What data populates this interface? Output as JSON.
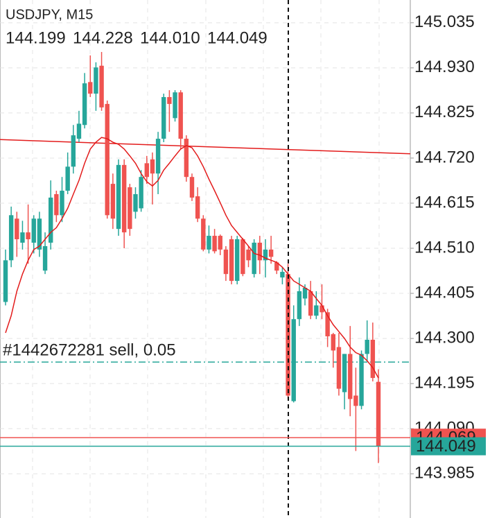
{
  "chart_data": {
    "type": "candlestick",
    "title": "USDJPY, M15",
    "ohlc_labels": [
      "144.199",
      "144.228",
      "144.010",
      "144.049"
    ],
    "up_color": "#26a69a",
    "down_color": "#ef5350",
    "open": [
      144.385,
      144.482,
      144.579,
      144.523,
      144.547,
      144.523,
      144.507,
      144.458,
      144.523,
      144.636,
      144.587,
      144.644,
      144.7,
      144.765,
      144.797,
      144.897,
      144.87,
      144.935,
      144.846,
      144.66,
      144.555,
      144.704,
      144.652,
      144.595,
      144.603,
      144.708,
      144.717,
      144.684,
      144.765,
      144.862,
      144.813,
      144.873,
      144.765,
      144.676,
      144.631,
      144.579,
      144.507,
      144.539,
      144.539,
      144.507,
      144.531,
      144.434,
      144.531,
      144.507,
      144.45,
      144.523,
      144.482,
      144.507,
      144.477,
      144.442,
      144.45,
      144.154,
      144.345,
      144.393,
      144.41,
      144.353,
      144.377,
      144.361,
      144.31,
      144.28,
      144.175,
      144.264,
      144.167,
      144.143,
      144.264,
      144.297,
      144.199
    ],
    "high": [
      144.507,
      144.607,
      144.595,
      144.574,
      144.612,
      144.587,
      144.595,
      144.547,
      144.668,
      144.644,
      144.676,
      144.733,
      144.797,
      144.83,
      144.918,
      144.959,
      144.943,
      144.967,
      144.854,
      144.684,
      144.717,
      144.717,
      144.66,
      144.652,
      144.692,
      144.725,
      144.733,
      144.781,
      144.87,
      144.878,
      144.878,
      144.878,
      144.773,
      144.684,
      144.652,
      144.587,
      144.563,
      144.555,
      144.542,
      144.515,
      144.539,
      144.539,
      144.534,
      144.515,
      144.531,
      144.539,
      144.531,
      144.539,
      144.48,
      144.466,
      144.474,
      144.377,
      144.442,
      144.426,
      144.434,
      144.41,
      144.426,
      144.369,
      144.313,
      144.313,
      144.264,
      144.329,
      144.232,
      144.272,
      144.342,
      144.337,
      144.228
    ],
    "low": [
      144.377,
      144.466,
      144.49,
      144.507,
      144.474,
      144.498,
      144.49,
      144.45,
      144.507,
      144.571,
      144.571,
      144.636,
      144.684,
      144.757,
      144.789,
      144.862,
      144.83,
      144.83,
      144.579,
      144.555,
      144.539,
      144.51,
      144.539,
      144.579,
      144.595,
      144.66,
      144.612,
      144.636,
      144.757,
      144.781,
      144.805,
      144.741,
      144.665,
      144.62,
      144.571,
      144.503,
      144.498,
      144.498,
      144.494,
      144.434,
      144.426,
      144.426,
      144.445,
      144.466,
      144.442,
      144.45,
      144.442,
      144.474,
      144.45,
      144.426,
      144.159,
      144.151,
      144.329,
      144.377,
      144.345,
      144.345,
      144.345,
      144.28,
      144.232,
      144.167,
      144.135,
      144.119,
      144.038,
      144.135,
      144.248,
      144.2,
      144.01
    ],
    "close": [
      144.482,
      144.587,
      144.531,
      144.547,
      144.531,
      144.579,
      144.579,
      144.515,
      144.628,
      144.587,
      144.644,
      144.7,
      144.773,
      144.8,
      144.894,
      144.87,
      144.931,
      144.838,
      144.587,
      144.579,
      144.704,
      144.547,
      144.555,
      144.636,
      144.676,
      144.676,
      144.684,
      144.765,
      144.862,
      144.846,
      144.873,
      144.765,
      144.676,
      144.628,
      144.579,
      144.507,
      144.539,
      144.503,
      144.507,
      144.45,
      144.434,
      144.531,
      144.45,
      144.482,
      144.523,
      144.482,
      144.507,
      144.49,
      144.458,
      144.455,
      144.167,
      144.345,
      144.41,
      144.418,
      144.353,
      144.377,
      144.361,
      144.305,
      144.272,
      144.183,
      144.264,
      144.159,
      144.143,
      144.264,
      144.297,
      144.208,
      144.049
    ],
    "ma": {
      "color": "#e31b1b",
      "values": [
        144.313,
        144.353,
        144.41,
        144.45,
        144.482,
        144.507,
        144.515,
        144.531,
        144.547,
        144.558,
        144.579,
        144.603,
        144.636,
        144.668,
        144.708,
        144.741,
        144.757,
        144.768,
        144.765,
        144.757,
        144.752,
        144.741,
        144.725,
        144.708,
        144.684,
        144.665,
        144.655,
        144.668,
        144.692,
        144.708,
        144.725,
        144.741,
        144.749,
        144.744,
        144.725,
        144.7,
        144.671,
        144.644,
        144.616,
        144.587,
        144.563,
        144.547,
        144.531,
        144.515,
        144.498,
        144.494,
        144.487,
        144.482,
        144.477,
        144.466,
        144.45,
        144.434,
        144.426,
        144.418,
        144.41,
        144.393,
        144.377,
        144.353,
        144.332,
        144.316,
        144.3,
        144.28,
        144.267,
        144.261,
        144.248,
        144.232,
        144.208
      ]
    },
    "trendline": {
      "color": "#e31b1b",
      "values": [
        144.763,
        144.73
      ]
    },
    "order_line": {
      "label": "#1442672281 sell, 0.05",
      "value": 144.245,
      "color": "#26a69a"
    },
    "ask": {
      "value": 144.069,
      "color": "#ef5350"
    },
    "bid": {
      "value": 144.049,
      "color": "#26a69a"
    },
    "ylim": [
      143.882,
      145.088
    ],
    "yticks": [
      145.035,
      {
        "value": 144.93,
        "label": "144.930"
      },
      144.825,
      {
        "value": 144.72,
        "label": "144.720"
      },
      144.615,
      {
        "value": 144.51,
        "label": "144.510"
      },
      144.405,
      {
        "value": 144.3,
        "label": "144.300"
      },
      144.195,
      {
        "value": 144.09,
        "label": "144.090"
      },
      143.985
    ],
    "grid": true
  }
}
